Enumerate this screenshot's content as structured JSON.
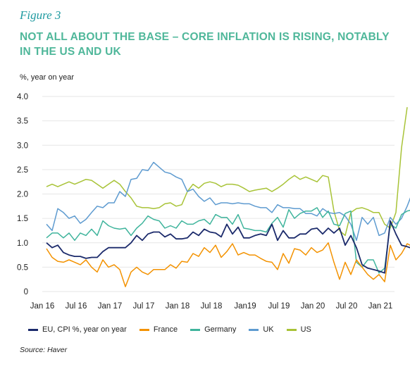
{
  "figure_label": "Figure 3",
  "title": "NOT ALL ABOUT THE BASE – CORE INFLATION IS RISING, NOTABLY IN THE US AND UK",
  "source": "Source: Haver",
  "chart_data": {
    "type": "line",
    "title": "NOT ALL ABOUT THE BASE – CORE INFLATION IS RISING, NOTABLY IN THE US AND UK",
    "ylabel": "%, year on year",
    "xlabel": "",
    "ylim": [
      0,
      4.0
    ],
    "yticks": [
      0,
      0.5,
      1.0,
      1.5,
      2.0,
      2.5,
      3.0,
      3.5,
      4.0
    ],
    "ytick_labels": [
      "0",
      "0.5",
      "1.0",
      "1.5",
      "2.0",
      "2.5",
      "3.0",
      "3.5",
      "4.0"
    ],
    "x_start": "Jan 2016",
    "x_end": "Jun 2021",
    "xticks": [
      {
        "label": "Jan 16",
        "index": 0
      },
      {
        "label": "Jul 16",
        "index": 6
      },
      {
        "label": "Jan 17",
        "index": 12
      },
      {
        "label": "Jul 17",
        "index": 18
      },
      {
        "label": "Jan 18",
        "index": 24
      },
      {
        "label": "Jul 18",
        "index": 30
      },
      {
        "label": "Jan19",
        "index": 36
      },
      {
        "label": "Jul 19",
        "index": 42
      },
      {
        "label": "Jan 20",
        "index": 48
      },
      {
        "label": "Jul 20",
        "index": 54
      },
      {
        "label": "Jan 21",
        "index": 60
      }
    ],
    "grid": "horizontal",
    "legend": "bottom",
    "series": [
      {
        "name": "EU, CPI %, year on year",
        "color": "#1b2a6b",
        "values": [
          1.0,
          0.9,
          0.95,
          0.8,
          0.75,
          0.72,
          0.72,
          0.68,
          0.7,
          0.7,
          0.82,
          0.9,
          0.9,
          0.9,
          0.9,
          1.0,
          1.15,
          1.05,
          1.18,
          1.22,
          1.22,
          1.12,
          1.18,
          1.08,
          1.08,
          1.1,
          1.22,
          1.15,
          1.28,
          1.22,
          1.2,
          1.12,
          1.38,
          1.18,
          1.32,
          1.1,
          1.1,
          1.15,
          1.18,
          1.15,
          1.38,
          1.05,
          1.25,
          1.1,
          1.1,
          1.18,
          1.18,
          1.28,
          1.3,
          1.18,
          1.3,
          1.2,
          1.3,
          0.95,
          1.15,
          0.9,
          0.55,
          0.48,
          0.45,
          0.42,
          0.38,
          1.45,
          1.18,
          0.95,
          0.92,
          0.88
        ]
      },
      {
        "name": "France",
        "color": "#f39200",
        "values": [
          0.88,
          0.7,
          0.62,
          0.6,
          0.65,
          0.6,
          0.55,
          0.65,
          0.5,
          0.4,
          0.65,
          0.5,
          0.55,
          0.45,
          0.1,
          0.4,
          0.5,
          0.4,
          0.35,
          0.45,
          0.45,
          0.45,
          0.55,
          0.48,
          0.62,
          0.6,
          0.78,
          0.72,
          0.9,
          0.8,
          0.95,
          0.7,
          0.82,
          0.98,
          0.75,
          0.8,
          0.75,
          0.75,
          0.68,
          0.62,
          0.6,
          0.45,
          0.78,
          0.58,
          0.88,
          0.85,
          0.75,
          0.9,
          0.8,
          0.85,
          1.0,
          0.6,
          0.25,
          0.6,
          0.35,
          0.65,
          0.5,
          0.35,
          0.25,
          0.35,
          0.2,
          0.95,
          0.65,
          0.78,
          0.98,
          0.92
        ]
      },
      {
        "name": "Germany",
        "color": "#3fb49c",
        "values": [
          1.1,
          1.2,
          1.2,
          1.1,
          1.2,
          1.05,
          1.2,
          1.15,
          1.28,
          1.15,
          1.45,
          1.35,
          1.3,
          1.28,
          1.3,
          1.15,
          1.3,
          1.4,
          1.55,
          1.48,
          1.45,
          1.3,
          1.35,
          1.3,
          1.45,
          1.38,
          1.38,
          1.45,
          1.48,
          1.38,
          1.58,
          1.52,
          1.52,
          1.38,
          1.58,
          1.3,
          1.28,
          1.25,
          1.25,
          1.22,
          1.4,
          1.52,
          1.32,
          1.68,
          1.5,
          1.6,
          1.65,
          1.65,
          1.72,
          1.52,
          1.65,
          1.38,
          1.35,
          1.6,
          1.65,
          0.6,
          0.5,
          0.65,
          0.65,
          0.38,
          0.48,
          1.38,
          1.3,
          1.58,
          1.65,
          1.68
        ]
      },
      {
        "name": "UK",
        "color": "#5e9bd0",
        "values": [
          1.38,
          1.25,
          1.7,
          1.62,
          1.5,
          1.55,
          1.4,
          1.48,
          1.62,
          1.75,
          1.72,
          1.82,
          1.82,
          2.05,
          1.95,
          2.3,
          2.32,
          2.5,
          2.48,
          2.65,
          2.55,
          2.45,
          2.42,
          2.35,
          2.3,
          2.05,
          2.1,
          1.95,
          1.85,
          1.92,
          1.78,
          1.82,
          1.82,
          1.8,
          1.82,
          1.8,
          1.8,
          1.75,
          1.72,
          1.72,
          1.62,
          1.78,
          1.72,
          1.72,
          1.7,
          1.7,
          1.6,
          1.6,
          1.55,
          1.7,
          1.62,
          1.6,
          1.62,
          1.55,
          1.38,
          1.05,
          1.52,
          1.38,
          1.52,
          1.15,
          1.2,
          1.52,
          1.38,
          1.5,
          1.75,
          2.05
        ]
      },
      {
        "name": "US",
        "color": "#a8c337",
        "values": [
          2.15,
          2.2,
          2.15,
          2.2,
          2.25,
          2.2,
          2.25,
          2.3,
          2.28,
          2.2,
          2.12,
          2.2,
          2.28,
          2.2,
          2.05,
          1.92,
          1.75,
          1.72,
          1.72,
          1.7,
          1.72,
          1.8,
          1.82,
          1.75,
          1.78,
          2.05,
          2.2,
          2.12,
          2.22,
          2.25,
          2.22,
          2.15,
          2.2,
          2.2,
          2.18,
          2.12,
          2.05,
          2.08,
          2.1,
          2.12,
          2.05,
          2.12,
          2.2,
          2.3,
          2.38,
          2.3,
          2.35,
          2.3,
          2.25,
          2.38,
          2.35,
          1.65,
          1.25,
          1.15,
          1.62,
          1.7,
          1.72,
          1.68,
          1.62,
          1.62,
          1.38,
          1.3,
          1.62,
          2.95,
          3.78
        ]
      }
    ]
  }
}
